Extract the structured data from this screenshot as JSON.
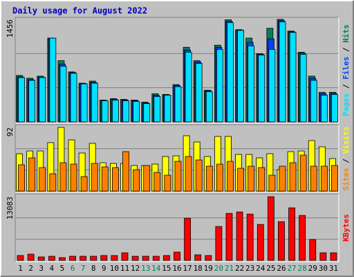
{
  "chart_data": [
    {
      "type": "grouped-bar",
      "title": "Daily usage for August 2022",
      "ylim": [
        0,
        1456
      ],
      "yticks": [
        1456
      ],
      "legend_separator": " / ",
      "series": [
        {
          "name": "Hits",
          "color": "#00805c",
          "values": [
            660,
            620,
            650,
            1190,
            870,
            710,
            550,
            580,
            310,
            330,
            320,
            310,
            280,
            400,
            390,
            530,
            1060,
            870,
            450,
            1090,
            1450,
            1310,
            1190,
            970,
            1330,
            1456,
            1290,
            990,
            650,
            420,
            420
          ]
        },
        {
          "name": "Files",
          "color": "#0040ff",
          "values": [
            640,
            600,
            635,
            1190,
            820,
            700,
            545,
            560,
            305,
            320,
            310,
            300,
            270,
            380,
            385,
            515,
            1020,
            850,
            440,
            1060,
            1430,
            1305,
            1130,
            960,
            1180,
            1440,
            1280,
            975,
            620,
            400,
            405
          ]
        },
        {
          "name": "Pages",
          "color": "#00e0ff",
          "values": [
            630,
            590,
            630,
            1190,
            790,
            690,
            540,
            550,
            300,
            310,
            300,
            290,
            260,
            360,
            380,
            500,
            990,
            830,
            430,
            1030,
            1410,
            1300,
            1080,
            950,
            1030,
            1420,
            1270,
            960,
            590,
            380,
            390
          ]
        }
      ]
    },
    {
      "type": "grouped-bar",
      "ylim": [
        0,
        92
      ],
      "yticks": [
        92
      ],
      "legend_separator": " / ",
      "series": [
        {
          "name": "Visits",
          "color": "#ffff00",
          "values": [
            54,
            58,
            58,
            70,
            92,
            74,
            55,
            69,
            41,
            40,
            40,
            37,
            37,
            39,
            50,
            51,
            80,
            71,
            50,
            79,
            79,
            53,
            53,
            48,
            54,
            31,
            57,
            58,
            73,
            64,
            47
          ]
        },
        {
          "name": "Sites",
          "color": "#ff8000",
          "values": [
            38,
            48,
            34,
            25,
            41,
            39,
            21,
            40,
            35,
            34,
            57,
            31,
            37,
            27,
            23,
            43,
            50,
            45,
            36,
            39,
            43,
            33,
            36,
            34,
            23,
            36,
            41,
            52,
            36,
            36,
            37
          ]
        }
      ]
    },
    {
      "type": "bar",
      "ylim": [
        0,
        13083
      ],
      "yticks": [
        13083
      ],
      "categories": [
        "1",
        "2",
        "3",
        "4",
        "5",
        "6",
        "7",
        "8",
        "9",
        "10",
        "11",
        "12",
        "13",
        "14",
        "15",
        "16",
        "17",
        "18",
        "19",
        "20",
        "21",
        "22",
        "23",
        "24",
        "25",
        "26",
        "27",
        "28",
        "29",
        "30",
        "31"
      ],
      "category_colors": [
        "#000000",
        "#000000",
        "#000000",
        "#000000",
        "#000000",
        "#00805c",
        "#00805c",
        "#000000",
        "#000000",
        "#000000",
        "#000000",
        "#000000",
        "#00805c",
        "#00805c",
        "#000000",
        "#000000",
        "#000000",
        "#000000",
        "#000000",
        "#00805c",
        "#00805c",
        "#000000",
        "#000000",
        "#000000",
        "#000000",
        "#000000",
        "#00805c",
        "#00805c",
        "#000000",
        "#000000",
        "#000000"
      ],
      "series": [
        {
          "name": "KBytes",
          "color": "#ff0000",
          "values": [
            1000,
            1280,
            710,
            850,
            570,
            850,
            850,
            850,
            1000,
            1000,
            1560,
            850,
            850,
            850,
            1000,
            1700,
            8660,
            1140,
            1000,
            6960,
            9650,
            9940,
            9510,
            7380,
            13083,
            7950,
            10790,
            9230,
            4260,
            1560,
            1560
          ]
        }
      ]
    }
  ]
}
